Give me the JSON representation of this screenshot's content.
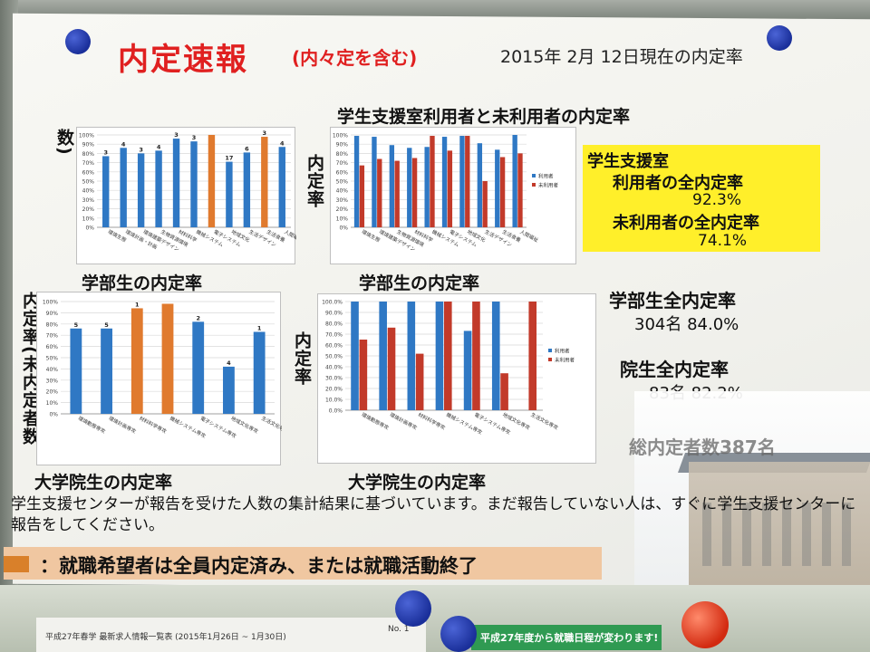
{
  "poster": {
    "title": "内定速報",
    "title_sub": "(内々定を含む)",
    "date_line": "2015年 2月 12日現在の内定率"
  },
  "sections": {
    "support_comparison_title": "学生支援室利用者と未利用者の内定率",
    "undergrad_title_left": "学部生の内定率",
    "undergrad_title_right": "学部生の内定率",
    "grad_title_left": "大学院生の内定率",
    "grad_title_right": "大学院生の内定率",
    "vlabel_rate_unoffered": "内定率(未内定者数)",
    "vlabel_rate_unoffered2": "内定率(未内定者数",
    "vlabel_rate": "内定率",
    "vlabel_rate2": "内定率"
  },
  "summary": {
    "box_line1": "学生支援室",
    "box_line2": "利用者の全内定率",
    "box_val1": "92.3%",
    "box_line3": "未利用者の全内定率",
    "box_val2": "74.1%",
    "undergrad_head": "学部生全内定率",
    "undergrad_val": "304名   84.0%",
    "grad_head": "院生全内定率",
    "grad_val": "83名   82.2%",
    "total": "総内定者数387名"
  },
  "note": "学生支援センターが報告を受けた人数の集計結果に基づいています。まだ報告していない人は、すぐに学生支援センターに報告をしてください。",
  "highlight": "：就職希望者は全員内定済み、または就職活動終了",
  "bottom": {
    "doc_text": "平成27年春学 最新求人情報一覧表 (2015年1月26日 ~ 1月30日)",
    "no_label": "No. 1",
    "green_text": "平成27年度から就職日程が変わります!"
  },
  "colors": {
    "blue": "#2f78c4",
    "orange": "#e07a2e",
    "red": "#c23a2a"
  },
  "chart_data": [
    {
      "type": "bar",
      "title": "",
      "categories": [
        "環境生態",
        "環境計画・計画",
        "環境建築デザイン",
        "生物資源環境",
        "材料科学",
        "機械システム",
        "電子システム",
        "地域文化",
        "生活デザイン",
        "生活食養",
        "人間福祉"
      ],
      "values": [
        77,
        86,
        80,
        83,
        96,
        93,
        100,
        71,
        81,
        98,
        87
      ],
      "labels": [
        "3",
        "4",
        "3",
        "4",
        "3",
        "3",
        "",
        "17",
        "6",
        "3",
        "4"
      ],
      "highlight": [
        false,
        false,
        false,
        false,
        false,
        false,
        true,
        false,
        false,
        true,
        false
      ],
      "yticks": [
        "0%",
        "10%",
        "20%",
        "30%",
        "40%",
        "50%",
        "60%",
        "70%",
        "80%",
        "90%",
        "100%"
      ],
      "ylim": [
        0,
        100
      ]
    },
    {
      "type": "bar",
      "title": "",
      "categories": [
        "環境生態",
        "環境建築デザイン",
        "生物資源環境",
        "材料科学",
        "機械システム",
        "電子システム",
        "地域文化",
        "生活デザイン",
        "生活食養",
        "人間福祉"
      ],
      "series": [
        {
          "name": "利用者",
          "values": [
            99,
            98,
            89,
            86,
            87,
            98,
            99,
            91,
            84,
            100
          ]
        },
        {
          "name": "未利用者",
          "values": [
            67,
            74,
            72,
            75,
            99,
            83,
            99,
            50,
            76,
            80
          ]
        }
      ],
      "yticks": [
        "0%",
        "10%",
        "20%",
        "30%",
        "40%",
        "50%",
        "60%",
        "70%",
        "80%",
        "90%",
        "100%"
      ],
      "ylim": [
        0,
        100
      ]
    },
    {
      "type": "bar",
      "title": "",
      "categories": [
        "環境動態専攻",
        "環境計画専攻",
        "材料科学専攻",
        "機械システム専攻",
        "電子システム専攻",
        "地域文化専攻",
        "生活文化専攻"
      ],
      "values": [
        76,
        76,
        94,
        98,
        82,
        42,
        73
      ],
      "labels": [
        "5",
        "5",
        "1",
        "",
        "2",
        "4",
        "1"
      ],
      "highlight": [
        false,
        false,
        true,
        true,
        false,
        false,
        false
      ],
      "yticks": [
        "0%",
        "10%",
        "20%",
        "30%",
        "40%",
        "50%",
        "60%",
        "70%",
        "80%",
        "90%",
        "100%"
      ],
      "ylim": [
        0,
        100
      ]
    },
    {
      "type": "bar",
      "title": "",
      "categories": [
        "環境動態専攻",
        "環境計画専攻",
        "材料科学専攻",
        "機械システム専攻",
        "電子システム専攻",
        "地域文化専攻",
        "生活文化専攻"
      ],
      "series": [
        {
          "name": "利用者",
          "values": [
            100,
            100,
            100,
            100,
            73,
            100,
            0
          ]
        },
        {
          "name": "未利用者",
          "values": [
            65,
            76,
            52,
            100,
            100,
            34,
            100
          ]
        }
      ],
      "yticks": [
        "0.0%",
        "10.0%",
        "20.0%",
        "30.0%",
        "40.0%",
        "50.0%",
        "60.0%",
        "70.0%",
        "80.0%",
        "90.0%",
        "100.0%"
      ],
      "ylim": [
        0,
        100
      ]
    }
  ]
}
